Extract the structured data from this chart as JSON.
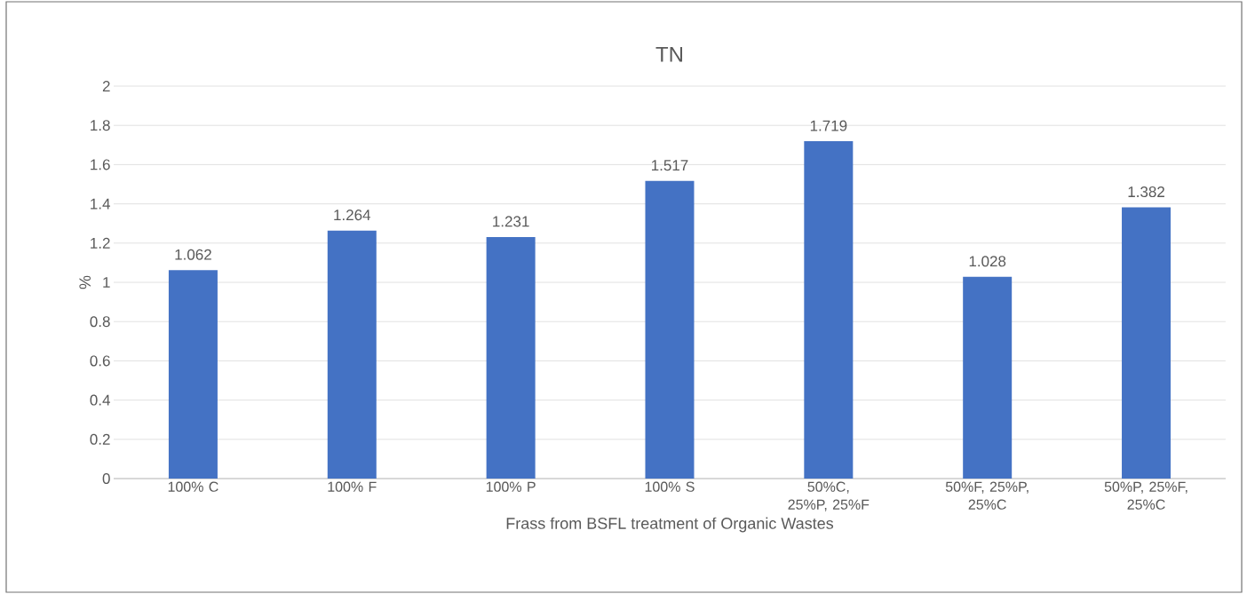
{
  "chart_data": {
    "type": "bar",
    "title": "TN",
    "xlabel": "Frass from BSFL treatment of Organic Wastes",
    "ylabel": "%",
    "categories": [
      "100% C",
      "100% F",
      "100% P",
      "100% S",
      "50%C, 25%P, 25%F",
      "50%F, 25%P, 25%C",
      "50%P, 25%F, 25%C"
    ],
    "values": [
      1.062,
      1.264,
      1.231,
      1.517,
      1.719,
      1.028,
      1.382
    ],
    "color": "#4472c4",
    "data_labels": true,
    "grid": "y",
    "ylim": [
      0,
      2
    ],
    "yticks": [
      0,
      0.2,
      0.4,
      0.6,
      0.8,
      1,
      1.2,
      1.4,
      1.6,
      1.8,
      2
    ]
  }
}
